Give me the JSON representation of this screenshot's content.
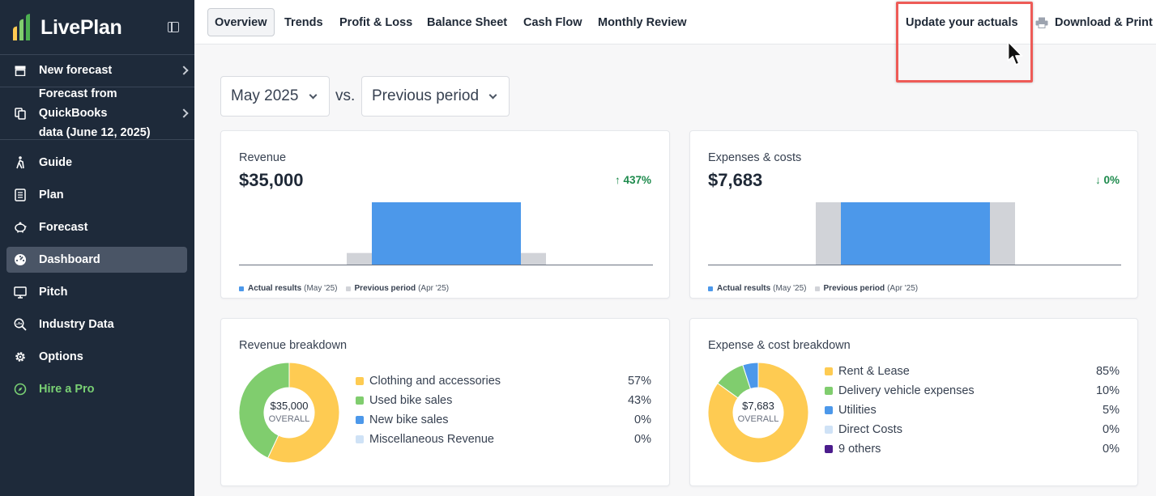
{
  "app": {
    "logo_text": "LivePlan"
  },
  "sidebar": {
    "items": [
      {
        "label": "New forecast",
        "icon": "store-icon"
      },
      {
        "label": "Forecast from QuickBooks",
        "label2": "data (June 12, 2025)",
        "icon": "copy-icon"
      },
      {
        "label": "Guide",
        "icon": "hiker-icon"
      },
      {
        "label": "Plan",
        "icon": "notebook-icon"
      },
      {
        "label": "Forecast",
        "icon": "piggy-bank-icon"
      },
      {
        "label": "Dashboard",
        "icon": "gauge-icon"
      },
      {
        "label": "Pitch",
        "icon": "monitor-icon"
      },
      {
        "label": "Industry Data",
        "icon": "magnify-chart-icon"
      },
      {
        "label": "Options",
        "icon": "gear-icon"
      },
      {
        "label": "Hire a Pro",
        "icon": "compass-icon"
      }
    ]
  },
  "topnav": {
    "tabs": [
      "Overview",
      "Trends",
      "Profit & Loss",
      "Balance Sheet",
      "Cash Flow",
      "Monthly Review"
    ],
    "update_label": "Update your actuals",
    "download_label": "Download & Print"
  },
  "filters": {
    "period": "May 2025",
    "vs": "vs.",
    "compare": "Previous period"
  },
  "colors": {
    "accent_blue": "#4c98ea",
    "gray_bar": "#d1d3d8",
    "green": "#1d8a4c",
    "yellow": "#fecb52",
    "lime": "#80cd6e",
    "light_blue": "#cfe2f6",
    "purple": "#4b1c8c"
  },
  "revenue": {
    "title": "Revenue",
    "value": "$35,000",
    "delta": "437%",
    "delta_dir": "up",
    "legend_actual": "Actual results",
    "legend_actual_period": "(May '25)",
    "legend_prev": "Previous period",
    "legend_prev_period": "(Apr '25)"
  },
  "expenses": {
    "title": "Expenses & costs",
    "value": "$7,683",
    "delta": "0%",
    "delta_dir": "down",
    "legend_actual": "Actual results",
    "legend_actual_period": "(May '25)",
    "legend_prev": "Previous period",
    "legend_prev_period": "(Apr '25)"
  },
  "chart_data": [
    {
      "type": "bar",
      "categories": [
        "Previous period (Apr '25)",
        "Actual results (May '25)"
      ],
      "values": [
        6517,
        35000
      ]
    },
    {
      "type": "bar",
      "categories": [
        "Previous period (Apr '25)",
        "Actual results (May '25)"
      ],
      "values": [
        7683,
        7683
      ]
    },
    {
      "type": "pie",
      "categories": [
        "Clothing and accessories",
        "Used bike sales",
        "New bike sales",
        "Miscellaneous Revenue"
      ],
      "values": [
        57,
        43,
        0,
        0
      ]
    },
    {
      "type": "pie",
      "categories": [
        "Rent & Lease",
        "Delivery vehicle expenses",
        "Utilities",
        "Direct Costs",
        "9 others"
      ],
      "values": [
        85,
        10,
        5,
        0,
        0
      ]
    }
  ],
  "revenue_breakdown": {
    "title": "Revenue breakdown",
    "center_value": "$35,000",
    "center_label": "OVERALL",
    "items": [
      {
        "label": "Clothing and accessories",
        "pct": "57%",
        "color": "#fecb52"
      },
      {
        "label": "Used bike sales",
        "pct": "43%",
        "color": "#80cd6e"
      },
      {
        "label": "New bike sales",
        "pct": "0%",
        "color": "#4c98ea"
      },
      {
        "label": "Miscellaneous Revenue",
        "pct": "0%",
        "color": "#cfe2f6"
      }
    ]
  },
  "expense_breakdown": {
    "title": "Expense & cost breakdown",
    "center_value": "$7,683",
    "center_label": "OVERALL",
    "items": [
      {
        "label": "Rent & Lease",
        "pct": "85%",
        "color": "#fecb52"
      },
      {
        "label": "Delivery vehicle expenses",
        "pct": "10%",
        "color": "#80cd6e"
      },
      {
        "label": "Utilities",
        "pct": "5%",
        "color": "#4c98ea"
      },
      {
        "label": "Direct Costs",
        "pct": "0%",
        "color": "#cfe2f6"
      },
      {
        "label": "9 others",
        "pct": "0%",
        "color": "#4b1c8c"
      }
    ]
  }
}
